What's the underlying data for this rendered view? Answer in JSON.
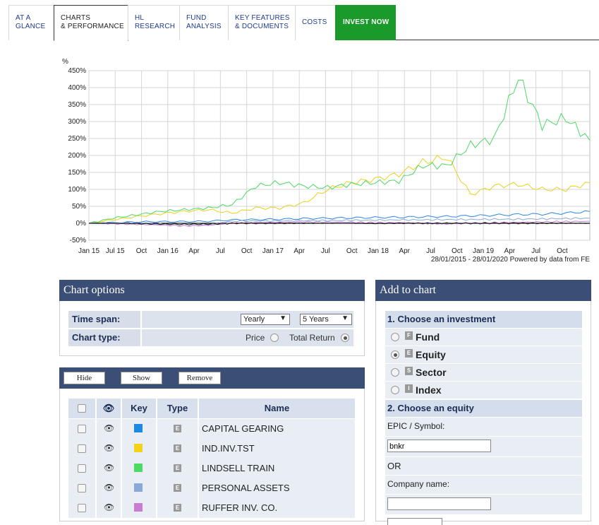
{
  "tabs": [
    {
      "label": "AT A\nGLANCE"
    },
    {
      "label": "CHARTS\n& PERFORMANCE"
    },
    {
      "label": "HL\nRESEARCH"
    },
    {
      "label": "FUND\nANALYSIS"
    },
    {
      "label": "KEY FEATURES\n& DOCUMENTS"
    },
    {
      "label": "COSTS"
    },
    {
      "label": "INVEST NOW"
    }
  ],
  "chart_data": {
    "type": "line",
    "ylabel": "%",
    "ylim": [
      -50,
      450
    ],
    "yticks": [
      "450%",
      "400%",
      "350%",
      "300%",
      "250%",
      "200%",
      "150%",
      "100%",
      "50%",
      "0%",
      "-50%"
    ],
    "xticks": [
      "Jan 15",
      "Jul 15",
      "Oct",
      "Jan 16",
      "Apr",
      "Jul",
      "Oct",
      "Jan 17",
      "Apr",
      "Jul",
      "Oct",
      "Jan 18",
      "Apr",
      "Jul",
      "Oct",
      "Jan 19",
      "Apr",
      "Jul",
      "Oct"
    ],
    "footer": "28/01/2015 - 28/01/2020 Powered by data from FE",
    "grid": true,
    "x": [
      "2015-01",
      "2015-04",
      "2015-07",
      "2015-10",
      "2016-01",
      "2016-04",
      "2016-07",
      "2016-10",
      "2017-01",
      "2017-04",
      "2017-07",
      "2017-10",
      "2018-01",
      "2018-04",
      "2018-07",
      "2018-10",
      "2019-01",
      "2019-04",
      "2019-06",
      "2019-07",
      "2019-10",
      "2020-01"
    ],
    "series": [
      {
        "color": "#2e86de",
        "values": [
          0,
          2,
          4,
          5,
          5,
          6,
          10,
          11,
          12,
          14,
          15,
          16,
          17,
          18,
          19,
          20,
          22,
          24,
          26,
          27,
          30,
          35
        ]
      },
      {
        "color": "#e8d21a",
        "values": [
          0,
          10,
          20,
          28,
          35,
          40,
          30,
          45,
          45,
          60,
          100,
          120,
          130,
          145,
          180,
          195,
          85,
          110,
          115,
          100,
          100,
          120
        ]
      },
      {
        "color": "#4cd964",
        "values": [
          0,
          15,
          25,
          35,
          40,
          45,
          55,
          110,
          120,
          110,
          105,
          115,
          120,
          125,
          170,
          170,
          230,
          250,
          430,
          290,
          310,
          245
        ]
      },
      {
        "color": "#8aa9d8",
        "values": [
          0,
          1,
          2,
          -2,
          -3,
          -4,
          6,
          7,
          7,
          8,
          8,
          9,
          9,
          10,
          10,
          11,
          11,
          12,
          12,
          13,
          14,
          15
        ]
      },
      {
        "color": "#c77dd1",
        "values": [
          0,
          -1,
          -3,
          -5,
          -8,
          -6,
          0,
          2,
          3,
          4,
          4,
          3,
          2,
          2,
          0,
          -2,
          0,
          2,
          3,
          4,
          5,
          6
        ]
      },
      {
        "color": "#111111",
        "values": [
          0,
          0,
          -1,
          -2,
          -3,
          -2,
          0,
          0,
          0,
          0,
          0,
          0,
          -1,
          0,
          0,
          0,
          0,
          0,
          0,
          0,
          0,
          0
        ]
      }
    ]
  },
  "chart_options": {
    "title": "Chart options",
    "time_span_label": "Time span:",
    "time_span_period": "Yearly",
    "time_span_years": "5 Years",
    "chart_type_label": "Chart type:",
    "price_label": "Price",
    "total_return_label": "Total Return"
  },
  "holdings": {
    "buttons": {
      "hide": "Hide",
      "show": "Show",
      "remove": "Remove"
    },
    "headers": {
      "key": "Key",
      "type": "Type",
      "name": "Name"
    },
    "rows": [
      {
        "name": "CAPITAL GEARING",
        "type": "E",
        "color": "#1e88e5"
      },
      {
        "name": "IND.INV.TST",
        "type": "E",
        "color": "#f2d21b"
      },
      {
        "name": "LINDSELL TRAIN",
        "type": "E",
        "color": "#4cd964"
      },
      {
        "name": "PERSONAL ASSETS",
        "type": "E",
        "color": "#8aa9d8"
      },
      {
        "name": "RUFFER INV. CO.",
        "type": "E",
        "color": "#c77dd1"
      }
    ]
  },
  "add_to_chart": {
    "title": "Add to chart",
    "step1": "1. Choose an investment",
    "investments": [
      {
        "label": "Fund",
        "icon": "F",
        "selected": false
      },
      {
        "label": "Equity",
        "icon": "E",
        "selected": true
      },
      {
        "label": "Sector",
        "icon": "S",
        "selected": false
      },
      {
        "label": "Index",
        "icon": "I",
        "selected": false
      }
    ],
    "step2": "2. Choose an equity",
    "epic_label": "EPIC / Symbol:",
    "epic_value": "bnkr",
    "or_label": "OR",
    "company_label": "Company name:",
    "company_value": ""
  }
}
